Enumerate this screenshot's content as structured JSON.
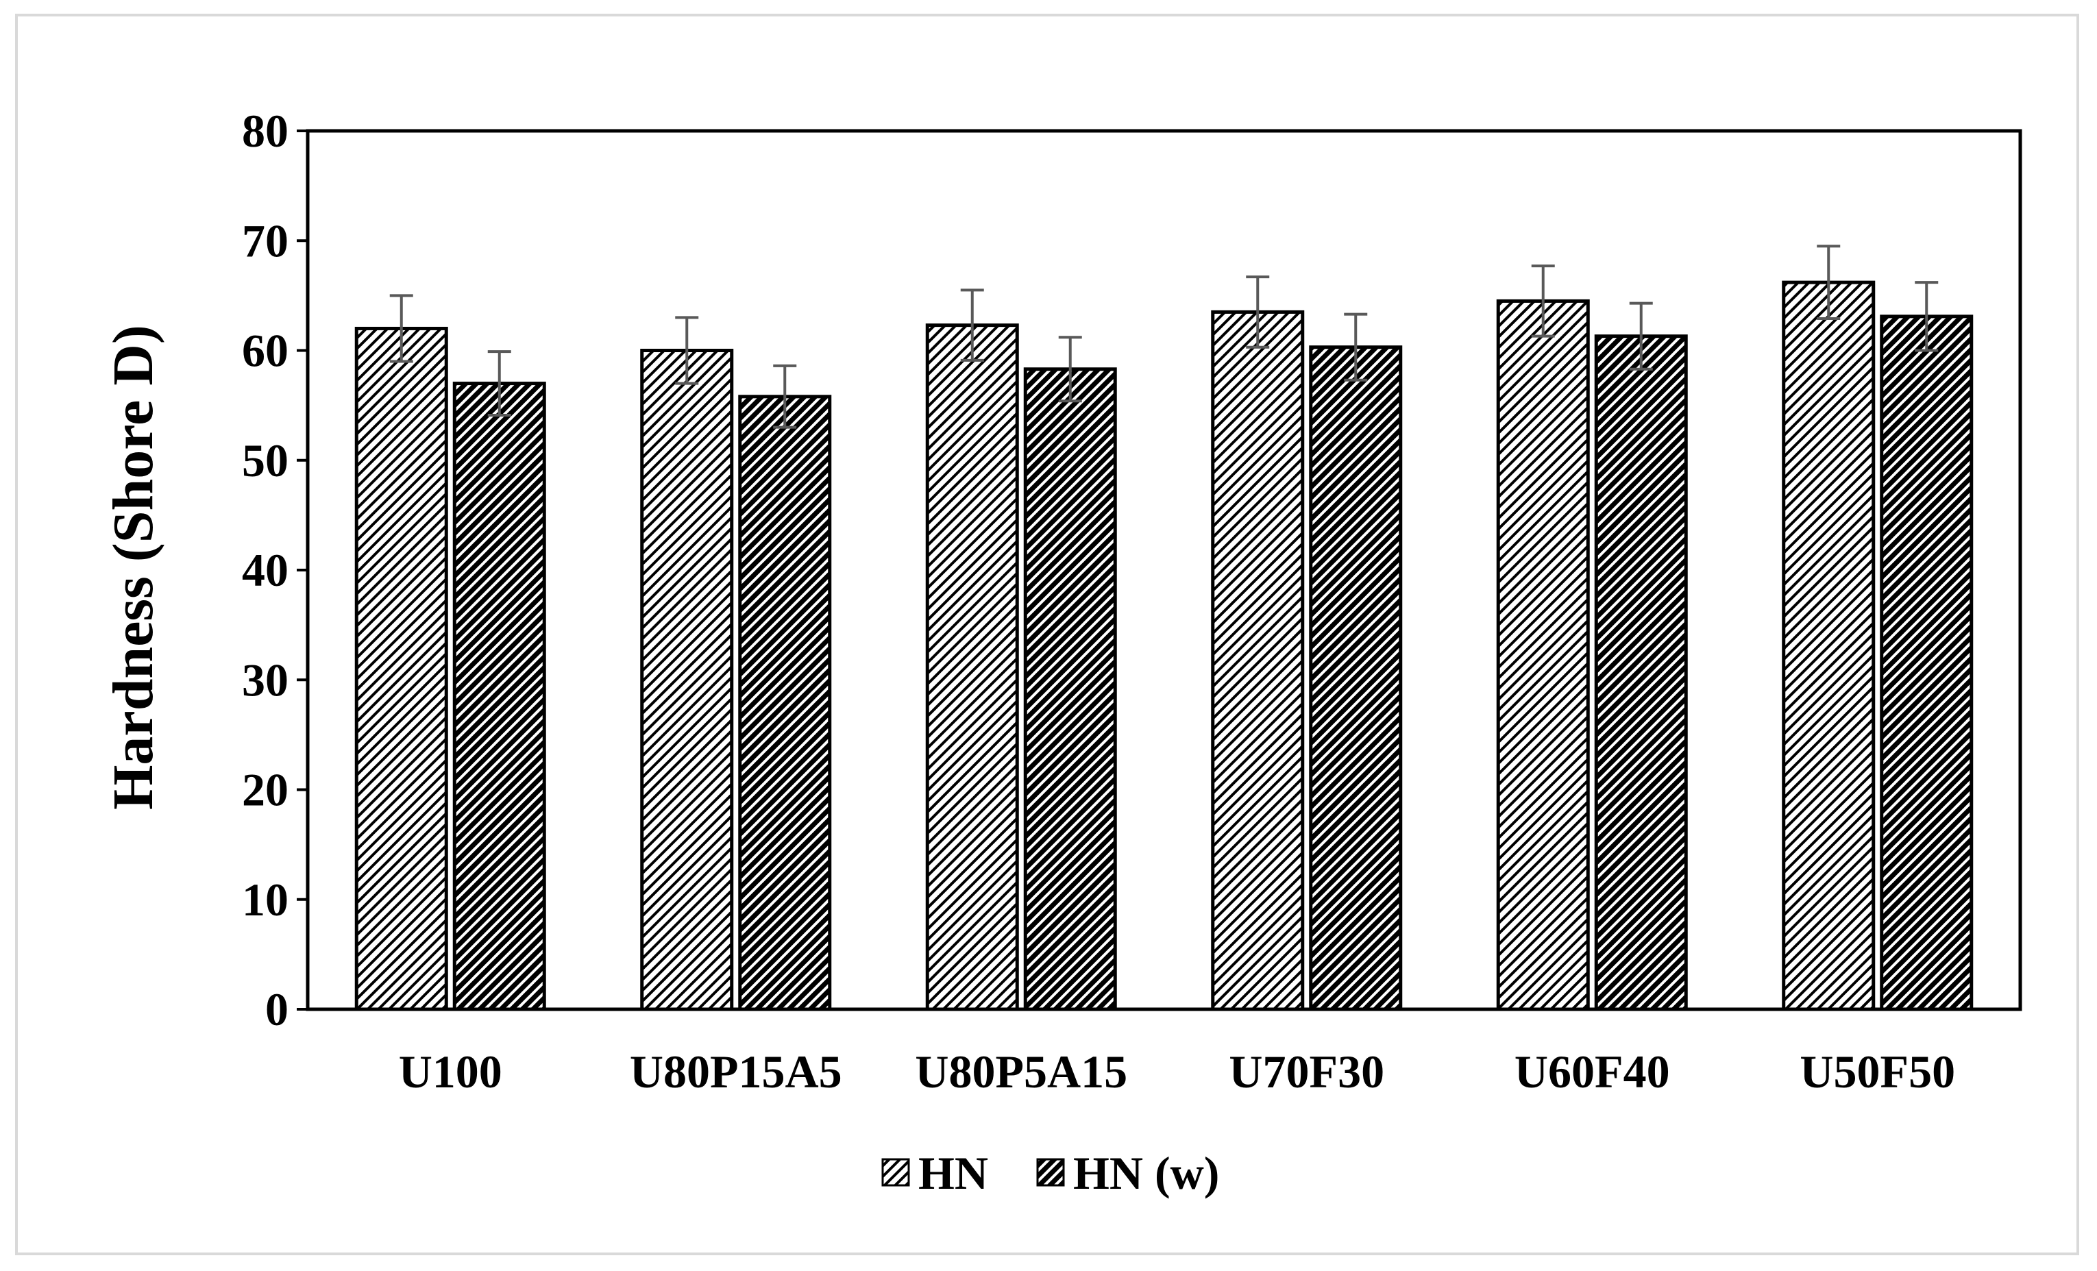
{
  "chart_data": {
    "type": "bar",
    "title": "",
    "xlabel": "",
    "ylabel": "Hardness (Shore D)",
    "ylim": [
      0,
      80
    ],
    "yticks": [
      0,
      10,
      20,
      30,
      40,
      50,
      60,
      70,
      80
    ],
    "categories": [
      "U100",
      "U80P15A5",
      "U80P5A15",
      "U70F30",
      "U60F40",
      "U50F50"
    ],
    "series": [
      {
        "name": "HN",
        "values": [
          62.0,
          60.0,
          62.3,
          63.5,
          64.5,
          66.2
        ],
        "errors": [
          3.0,
          3.0,
          3.2,
          3.2,
          3.2,
          3.3
        ],
        "pattern": "light-diagonal-hatch"
      },
      {
        "name": "HN (w)",
        "values": [
          57.0,
          55.8,
          58.3,
          60.3,
          61.3,
          63.1
        ],
        "errors": [
          2.9,
          2.8,
          2.9,
          3.0,
          3.0,
          3.1
        ],
        "pattern": "dense-diagonal-hatch"
      }
    ],
    "grid": false,
    "legend_position": "bottom-center",
    "error_bar_color": "#595959"
  }
}
